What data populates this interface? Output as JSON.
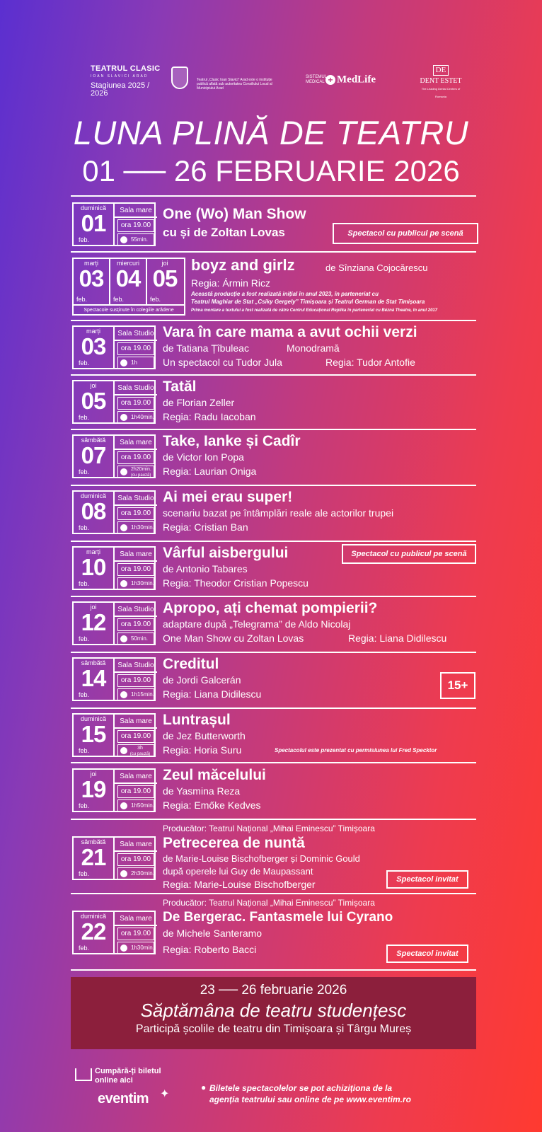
{
  "sponsors": {
    "theatre_name": "TEATRUL CLASIC",
    "theatre_sub": "IOAN SLAVICI ARAD",
    "season": "Stagiunea 2025 / 2026",
    "crest_text": "Teatrul „Clasic Ioan Slavici” Arad este o instituție publică aflată sub autoritatea Consiliului Local al Municipiului Arad",
    "medlife_small": "SISTEMUL MEDICAL",
    "medlife": "MedLife",
    "dent_logo": "DE",
    "dent_name": "DENT ESTET",
    "dent_tagline": "The Leading Dental Centers of Romania"
  },
  "header": {
    "title": "LUNA PLINĂ DE TEATRU",
    "dates": "01 ── 26 FEBRUARIE 2026"
  },
  "events": [
    {
      "day": "duminică",
      "num": "01",
      "month": "feb.",
      "hall": "Sala mare",
      "time": "ora 19.00",
      "duration": "55min.",
      "title": "One (Wo) Man Show",
      "line1": "cu și de Zoltan Lovas",
      "badge": "Spectacol cu publicul pe scenă"
    },
    {
      "title": "boyz and girlz",
      "author": "de Sînziana Cojocărescu",
      "line1": "Regia: Ármin Ricz",
      "note1": "Această producție a fost realizată inițial în anul 2023, în parteneriat cu",
      "note2": "Teatrul Maghiar de Stat „Csiky Gergely” Timișoara și Teatrul German de Stat Timișoara",
      "note3": "Prima montare a textului a fost realizată de către Centrul Educațional Replika în parteneriat cu Bézná Theatre, în anul 2017",
      "days": [
        {
          "day": "marți",
          "num": "03",
          "month": "feb."
        },
        {
          "day": "miercuri",
          "num": "04",
          "month": "feb."
        },
        {
          "day": "joi",
          "num": "05",
          "month": "feb."
        }
      ],
      "footnote": "Spectacole susținute în colegiile arădene"
    },
    {
      "day": "marți",
      "num": "03",
      "month": "feb.",
      "hall": "Sala Studio",
      "time": "ora 19.00",
      "duration": "1h",
      "title": "Vara în care mama a avut ochii verzi",
      "line1": "de Tatiana Țîbuleac",
      "line1b": "Monodramă",
      "line2": "Un spectacol cu Tudor Jula",
      "line2b": "Regia: Tudor Antofie"
    },
    {
      "day": "joi",
      "num": "05",
      "month": "feb.",
      "hall": "Sala Studio",
      "time": "ora 19.00",
      "duration": "1h40min.",
      "title": "Tatăl",
      "line1": "de Florian Zeller",
      "line2": "Regia: Radu Iacoban"
    },
    {
      "day": "sâmbătă",
      "num": "07",
      "month": "feb.",
      "hall": "Sala mare",
      "time": "ora 19.00",
      "duration": "2h20min.",
      "duration_note": "(cu pauză)",
      "title": "Take, Ianke și Cadîr",
      "line1": "de Victor Ion Popa",
      "line2": "Regia: Laurian Oniga"
    },
    {
      "day": "duminică",
      "num": "08",
      "month": "feb.",
      "hall": "Sala Studio",
      "time": "ora 19.00",
      "duration": "1h30min.",
      "title": "Ai mei erau super!",
      "line1": "scenariu bazat pe întâmplări reale ale actorilor trupei",
      "line2": "Regia: Cristian Ban"
    },
    {
      "day": "marți",
      "num": "10",
      "month": "feb.",
      "hall": "Sala mare",
      "time": "ora 19.00",
      "duration": "1h30min.",
      "title": "Vârful aisbergului",
      "line1": "de Antonio Tabares",
      "line2": "Regia: Theodor Cristian Popescu",
      "badge": "Spectacol cu publicul pe scenă"
    },
    {
      "day": "joi",
      "num": "12",
      "month": "feb.",
      "hall": "Sala Studio",
      "time": "ora 19.00",
      "duration": "50min.",
      "title": "Apropo, ați chemat pompierii?",
      "line1": "adaptare după „Telegrama” de Aldo Nicolaj",
      "line2": "One Man Show cu Zoltan Lovas",
      "line2b": "Regia: Liana Didilescu"
    },
    {
      "day": "sâmbătă",
      "num": "14",
      "month": "feb.",
      "hall": "Sala Studio",
      "time": "ora 19.00",
      "duration": "1h15min.",
      "title": "Creditul",
      "line1": "de Jordi Galcerán",
      "line2": "Regia: Liana Didilescu",
      "badge": "15+"
    },
    {
      "day": "duminică",
      "num": "15",
      "month": "feb.",
      "hall": "Sala mare",
      "time": "ora 19.00",
      "duration": "3h",
      "duration_note": "(cu pauză)",
      "title": "Luntrașul",
      "line1": "de Jez Butterworth",
      "line2": "Regia: Horia Suru",
      "note": "Spectacolul este prezentat cu permisiunea lui Fred  Specktor"
    },
    {
      "day": "joi",
      "num": "19",
      "month": "feb.",
      "hall": "Sala mare",
      "time": "ora 19.00",
      "duration": "1h50min.",
      "title": "Zeul măcelului",
      "line1": "de Yasmina Reza",
      "line2": "Regia: Emőke  Kedves"
    },
    {
      "producer": "Producător: Teatrul Național  „Mihai Eminescu” Timișoara",
      "day": "sâmbătă",
      "num": "21",
      "month": "feb.",
      "hall": "Sala mare",
      "time": "ora 19.00",
      "duration": "2h30min.",
      "title": "Petrecerea de nuntă",
      "line1": "de Marie-Louise Bischofberger și Dominic Gould",
      "line2": "după operele lui Guy de Maupassant",
      "line3": "Regia: Marie-Louise Bischofberger",
      "badge": "Spectacol invitat"
    },
    {
      "producer": "Producător: Teatrul Național  „Mihai Eminescu” Timișoara",
      "day": "duminică",
      "num": "22",
      "month": "feb.",
      "hall": "Sala mare",
      "time": "ora 19.00",
      "duration": "1h30min.",
      "title": "De Bergerac. Fantasmele lui Cyrano",
      "line1": "de Michele Santeramo",
      "line2": "Regia: Roberto Bacci",
      "badge": "Spectacol invitat"
    }
  ],
  "student_week": {
    "dates": "23 ── 26 februarie 2026",
    "name": "Săptămâna de teatru studențesc",
    "participants": "Participă școlile de teatru din Timișoara și Târgu Mureș"
  },
  "footer": {
    "buy_line1": "Cumpără-ți biletul",
    "buy_line2": "online aici",
    "eventim": "eventim",
    "note_line1": "Biletele spectacolelor se pot achiziționa de la",
    "note_line2": "agenția teatrului sau online de pe www.eventim.ro"
  }
}
